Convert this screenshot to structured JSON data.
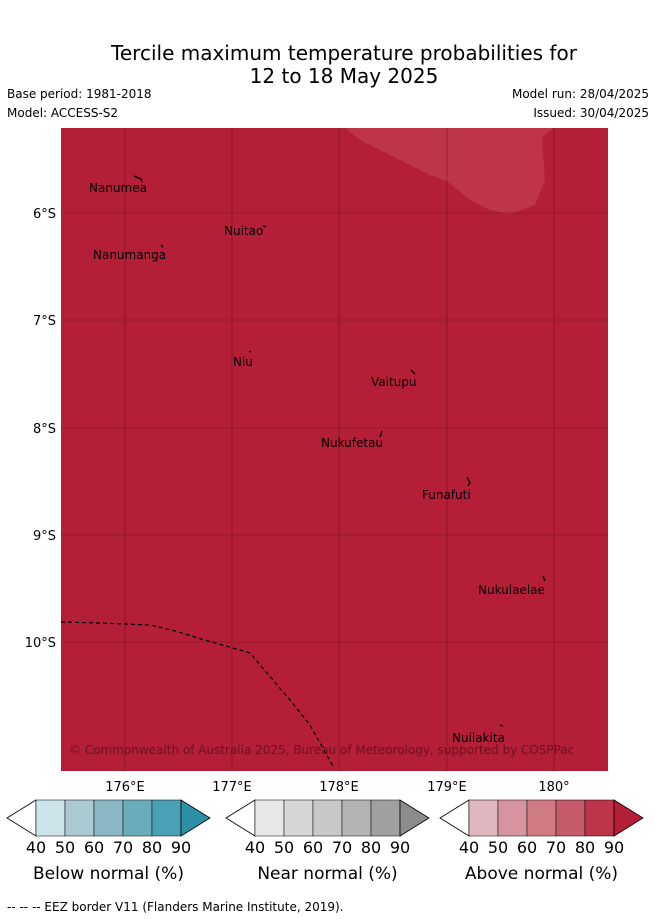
{
  "title": {
    "line1": "Tercile maximum temperature probabilities for",
    "line2": "12 to 18 May 2025"
  },
  "meta": {
    "base_period": "Base period: 1981-2018",
    "model": "Model: ACCESS-S2",
    "model_run": "Model run: 28/04/2025",
    "issued": "Issued: 30/04/2025"
  },
  "map": {
    "fill_color": "#b41e37",
    "lighter_region_color": "#be3448",
    "lat_labels": [
      "6°S",
      "7°S",
      "8°S",
      "9°S",
      "10°S"
    ],
    "lon_labels": [
      "176°E",
      "177°E",
      "178°E",
      "179°E",
      "180°"
    ],
    "places": [
      "Nanumea",
      "Nuitao",
      "Nanumanga",
      "Niu",
      "Vaitupu",
      "Nukufetau",
      "Funafuti",
      "Nukulaelae",
      "Nuilakita"
    ],
    "copyright": "© Commonwealth of Australia 2025, Bureau of Meteorology, supported by COSPPac"
  },
  "colorbars": [
    {
      "label": "Below normal (%)",
      "ticks": [
        "40",
        "50",
        "60",
        "70",
        "80",
        "90"
      ],
      "colors": [
        "#ffffff",
        "#cde4ea",
        "#aac9d0",
        "#89b7c4",
        "#6aacbc",
        "#4aa1b5",
        "#2b8fa5"
      ]
    },
    {
      "label": "Near normal (%)",
      "ticks": [
        "40",
        "50",
        "60",
        "70",
        "80",
        "90"
      ],
      "colors": [
        "#ffffff",
        "#e8e8e8",
        "#d6d6d6",
        "#c8c8c8",
        "#b4b4b4",
        "#a0a0a0",
        "#8c8c8c"
      ]
    },
    {
      "label": "Above normal (%)",
      "ticks": [
        "40",
        "50",
        "60",
        "70",
        "80",
        "90"
      ],
      "colors": [
        "#ffffff",
        "#e0b7bf",
        "#d6959e",
        "#d07b84",
        "#c55a69",
        "#be3448",
        "#b41e37"
      ]
    }
  ],
  "footer": "--  --  -- EEZ border V11 (Flanders Marine Institute, 2019)."
}
